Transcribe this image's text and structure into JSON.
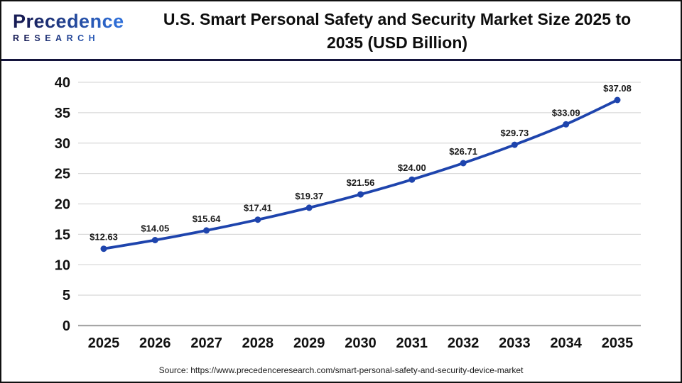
{
  "header": {
    "logo": {
      "line1": "Precedence",
      "line2": "RESEARCH"
    },
    "title_line1": "U.S. Smart Personal Safety and Security Market Size 2025 to",
    "title_line2": "2035 (USD Billion)"
  },
  "chart_data": {
    "type": "line",
    "title": "U.S. Smart Personal Safety and Security Market Size 2025 to 2035 (USD Billion)",
    "categories": [
      "2025",
      "2026",
      "2027",
      "2028",
      "2029",
      "2030",
      "2031",
      "2032",
      "2033",
      "2034",
      "2035"
    ],
    "values": [
      12.63,
      14.05,
      15.64,
      17.41,
      19.37,
      21.56,
      24.0,
      26.71,
      29.73,
      33.09,
      37.08
    ],
    "point_labels": [
      "$12.63",
      "$14.05",
      "$15.64",
      "$17.41",
      "$19.37",
      "$21.56",
      "$24.00",
      "$26.71",
      "$29.73",
      "$33.09",
      "$37.08"
    ],
    "xlabel": "",
    "ylabel": "",
    "ylim": [
      0,
      40
    ],
    "ytick_step": 5,
    "grid": true,
    "legend": false,
    "line_color": "#1e44ad",
    "grid_color": "#d9d9d9",
    "axis_line_color": "#a6a6a6",
    "tick_label_color": "#111111",
    "data_label_color": "#1a1a1a"
  },
  "theme": {
    "page_border": "#111111",
    "separator": "#14143c",
    "logo_gradient_start": "#171c55",
    "logo_gradient_end": "#2f6fd8",
    "title_color": "#0d0d0d",
    "source_color": "#1a1a1a",
    "background": "#ffffff"
  },
  "footer": {
    "source": "Source: https://www.precedenceresearch.com/smart-personal-safety-and-security-device-market"
  }
}
